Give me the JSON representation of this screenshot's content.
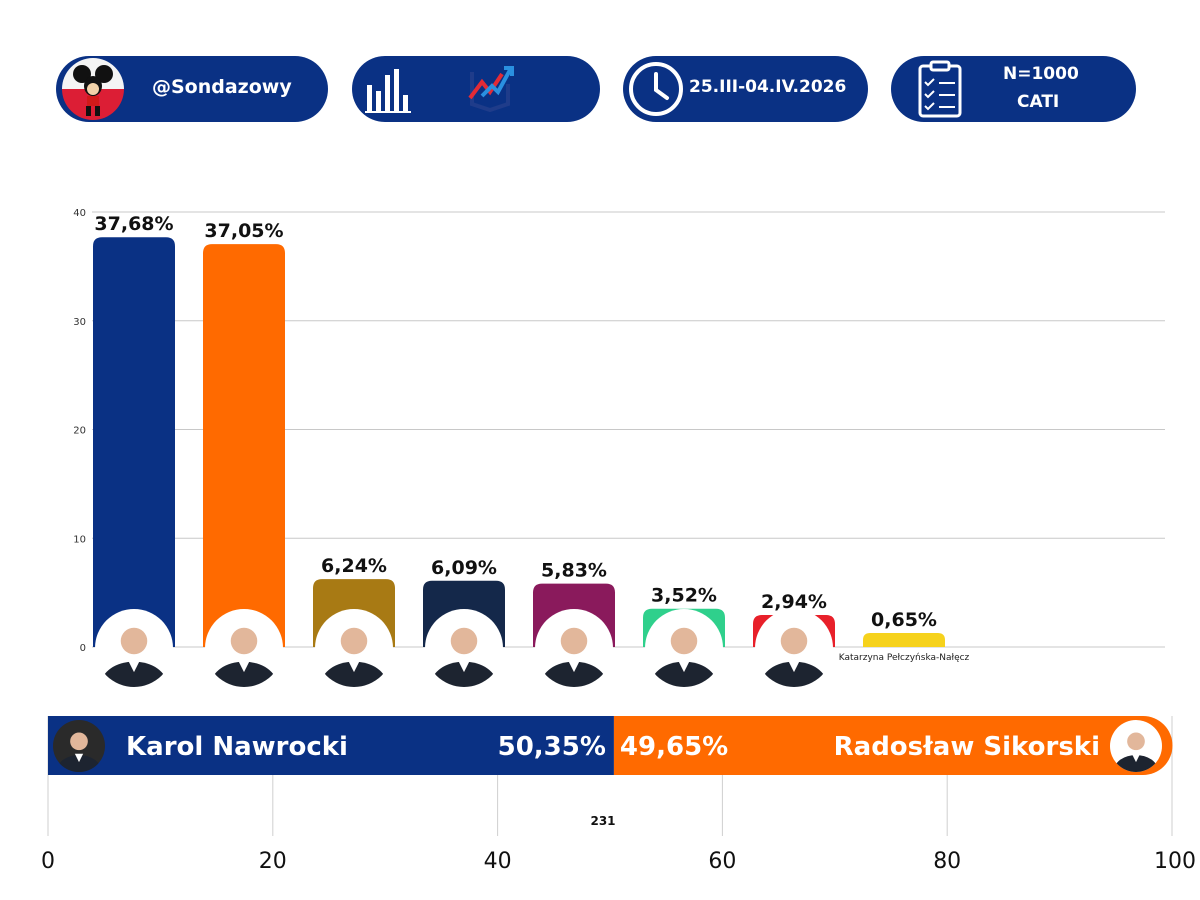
{
  "header": {
    "handle": "@Sondazowy",
    "dates": "25.III-04.IV.2026",
    "sample_line1": "N=1000",
    "sample_line2": "CATI",
    "icons": [
      "mickey-poland-flag-avatar",
      "bar-chart-icon",
      "trend-arrow-logo-icon",
      "clock-icon",
      "clipboard-checklist-icon"
    ]
  },
  "colors": {
    "navy": "#0a3184",
    "orange": "#ff6a00"
  },
  "chart_data": [
    {
      "type": "bar",
      "categories": [
        "",
        "",
        "",
        "",
        "",
        "",
        "",
        "Katarzyna Pełczyńska-Nałęcz"
      ],
      "values": [
        37.68,
        37.05,
        6.24,
        6.09,
        5.83,
        3.52,
        2.94,
        0.65
      ],
      "value_labels": [
        "37,68%",
        "37,05%",
        "6,24%",
        "6,09%",
        "5,83%",
        "3,52%",
        "2,94%",
        "0,65%"
      ],
      "bar_colors": [
        "#0a3184",
        "#ff6a00",
        "#a87a14",
        "#14284a",
        "#8a1a5c",
        "#2fd08c",
        "#e8202a",
        "#f6d21c"
      ],
      "yticks": [
        0,
        10,
        20,
        30,
        40
      ],
      "ylim": [
        0,
        40
      ],
      "grid": true
    },
    {
      "type": "bar",
      "orientation": "horizontal-stacked",
      "series": [
        {
          "name": "Karol Nawrocki",
          "value": 50.35,
          "label": "50,35%",
          "color": "#0a3184"
        },
        {
          "name": "Radosław Sikorski",
          "value": 49.65,
          "label": "49,65%",
          "color": "#ff6a00"
        }
      ],
      "xticks": [
        "0",
        "20",
        "40",
        "60",
        "80",
        "100"
      ],
      "xlim": [
        0,
        100
      ],
      "annotation": "231",
      "grid": true
    }
  ]
}
